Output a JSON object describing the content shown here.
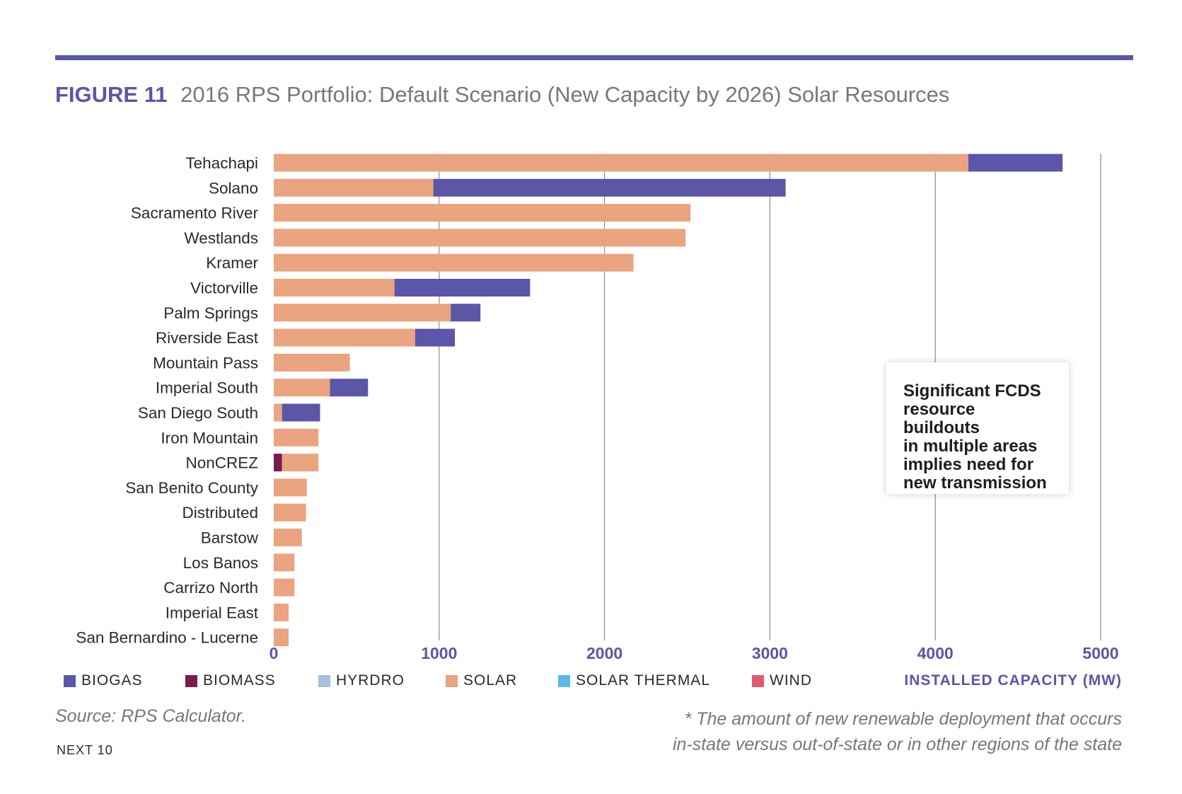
{
  "figure": {
    "number": "FIGURE 11",
    "title": "2016 RPS Portfolio: Default Scenario (New Capacity by 2026) Solar Resources"
  },
  "chart_data": {
    "type": "bar",
    "orientation": "horizontal",
    "stacked": true,
    "categories": [
      "Tehachapi",
      "Solano",
      "Sacramento River",
      "Westlands",
      "Kramer",
      "Victorville",
      "Palm Springs",
      "Riverside East",
      "Mountain Pass",
      "Imperial South",
      "San Diego South",
      "Iron Mountain",
      "NonCREZ",
      "San Benito County",
      "Distributed",
      "Barstow",
      "Los Banos",
      "Carrizo North",
      "Imperial East",
      "San Bernardino - Lucerne"
    ],
    "stack_order": [
      "BIOMASS",
      "SOLAR",
      "BIOGAS"
    ],
    "series": [
      {
        "name": "BIOGAS",
        "color": "#5b56a8",
        "values": [
          570,
          2130,
          0,
          0,
          0,
          820,
          180,
          240,
          0,
          230,
          230,
          0,
          0,
          0,
          0,
          0,
          0,
          0,
          0,
          0
        ]
      },
      {
        "name": "BIOMASS",
        "color": "#7b1a52",
        "values": [
          0,
          0,
          0,
          0,
          0,
          0,
          0,
          0,
          0,
          0,
          0,
          0,
          50,
          0,
          0,
          0,
          0,
          0,
          0,
          0
        ]
      },
      {
        "name": "HYRDRO",
        "color": "#a9c0dc",
        "values": [
          0,
          0,
          0,
          0,
          0,
          0,
          0,
          0,
          0,
          0,
          0,
          0,
          0,
          0,
          0,
          0,
          0,
          0,
          0,
          0
        ]
      },
      {
        "name": "SOLAR",
        "color": "#eaa47f",
        "values": [
          4200,
          965,
          2520,
          2490,
          2175,
          730,
          1070,
          855,
          460,
          340,
          50,
          270,
          220,
          200,
          195,
          170,
          125,
          125,
          90,
          90
        ]
      },
      {
        "name": "SOLAR THERMAL",
        "color": "#5ab9e8",
        "values": [
          0,
          0,
          0,
          0,
          0,
          0,
          0,
          0,
          0,
          0,
          0,
          0,
          0,
          0,
          0,
          0,
          0,
          0,
          0,
          0
        ]
      },
      {
        "name": "WIND",
        "color": "#e05a6e",
        "values": [
          0,
          0,
          0,
          0,
          0,
          0,
          0,
          0,
          0,
          0,
          0,
          0,
          0,
          0,
          0,
          0,
          0,
          0,
          0,
          0
        ]
      }
    ],
    "xlim": [
      0,
      5000
    ],
    "xticks": [
      0,
      1000,
      2000,
      3000,
      4000,
      5000
    ],
    "xlabel": "INSTALLED CAPACITY (MW)",
    "grid": "vertical",
    "legend_position": "bottom"
  },
  "legend": [
    {
      "label": "BIOGAS",
      "color": "#5b56a8"
    },
    {
      "label": "BIOMASS",
      "color": "#7b1a52"
    },
    {
      "label": "HYRDRO",
      "color": "#a9c0dc"
    },
    {
      "label": "SOLAR",
      "color": "#eaa47f"
    },
    {
      "label": "SOLAR THERMAL",
      "color": "#5ab9e8"
    },
    {
      "label": "WIND",
      "color": "#e05a6e"
    }
  ],
  "callout": {
    "lines": [
      "Significant FCDS",
      "resource buildouts",
      "in multiple areas",
      "implies need for",
      "new transmission"
    ]
  },
  "source": "Source:  RPS Calculator.",
  "footnote": {
    "lines": [
      "* The amount of new renewable deployment that occurs",
      "in-state versus out-of-state or in other regions of the state"
    ]
  },
  "page_footer": "NEXT 10"
}
